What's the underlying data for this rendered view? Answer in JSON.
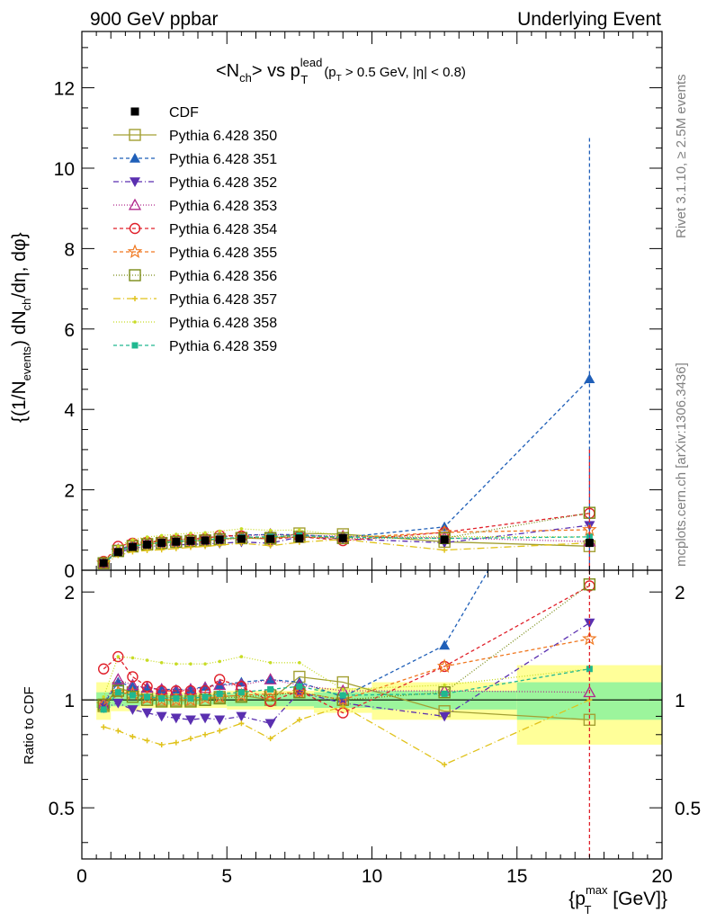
{
  "header": {
    "left": "900 GeV ppbar",
    "right": "Underlying Event"
  },
  "title": {
    "main": "<N",
    "main_sub": "ch",
    "main_mid": "> vs p",
    "main_sup": "lead",
    "main_sub2": "T",
    "cut_a": "(p",
    "cut_sub": "T",
    "cut_b": " > 0.5 GeV, |η| < 0.8)"
  },
  "side_text": {
    "rivet": "Rivet 3.1.10, ≥ 2.5M events",
    "mcplots": "mcplots.cern.ch [arXiv:1306.3436]"
  },
  "chart_data": {
    "type": "line",
    "ylabel_top": "{(1/N_events) dN_ch/dη, dφ}",
    "ylabel_top_parts": {
      "a": "{(1/N",
      "a_sub": "events",
      "b": ") dN",
      "b_sub": "ch",
      "c": "/dη, dφ}"
    },
    "ylabel_ratio": "Ratio to CDF",
    "xlabel": "{p_T^max [GeV]}",
    "xlabel_parts": {
      "a": "{p",
      "sup": "max",
      "sub": "T",
      "b": " [GeV]}"
    },
    "xlim": [
      0,
      20
    ],
    "ylim_top": [
      0,
      13.4
    ],
    "ylim_ratio": [
      0.36,
      2.3
    ],
    "x_ticks": [
      "0",
      "5",
      "10",
      "15",
      "20"
    ],
    "y_ticks_top": [
      "0",
      "2",
      "4",
      "6",
      "8",
      "10",
      "12"
    ],
    "y_ticks_ratio": [
      "0.5",
      "1",
      "2"
    ],
    "legend_position": "top-left",
    "x": [
      0.75,
      1.25,
      1.75,
      2.25,
      2.75,
      3.25,
      3.75,
      4.25,
      4.75,
      5.5,
      6.5,
      7.5,
      9.0,
      12.5,
      17.5
    ],
    "data": {
      "name": "CDF",
      "values": [
        0.18,
        0.45,
        0.58,
        0.64,
        0.68,
        0.71,
        0.73,
        0.74,
        0.76,
        0.78,
        0.78,
        0.79,
        0.8,
        0.76,
        0.68
      ]
    },
    "series": [
      {
        "name": "Pythia 6.428 350",
        "color": "#a3a033",
        "marker": "open-square",
        "dash": "solid",
        "ratio": [
          0.96,
          1.08,
          1.05,
          1.02,
          1.0,
          1.0,
          1.0,
          1.0,
          1.02,
          1.03,
          1.0,
          1.16,
          1.12,
          0.93,
          0.88
        ]
      },
      {
        "name": "Pythia 6.428 351",
        "color": "#1f5fb8",
        "marker": "filled-triangle-up",
        "dash": "4,3",
        "ratio": [
          0.97,
          1.12,
          1.09,
          1.08,
          1.07,
          1.07,
          1.07,
          1.09,
          1.1,
          1.12,
          1.14,
          1.12,
          1.02,
          1.42,
          7.0
        ]
      },
      {
        "name": "Pythia 6.428 352",
        "color": "#5a2fb0",
        "marker": "filled-triangle-down",
        "dash": "6,3,1,3",
        "ratio": [
          0.95,
          0.98,
          0.94,
          0.92,
          0.9,
          0.89,
          0.88,
          0.89,
          0.88,
          0.9,
          0.86,
          1.05,
          0.98,
          0.9,
          1.64
        ]
      },
      {
        "name": "Pythia 6.428 353",
        "color": "#b02a8c",
        "marker": "open-triangle-up",
        "dash": "1,2",
        "ratio": [
          0.98,
          1.14,
          1.1,
          1.08,
          1.07,
          1.06,
          1.07,
          1.08,
          1.1,
          1.1,
          1.14,
          1.1,
          1.06,
          1.06,
          1.05
        ]
      },
      {
        "name": "Pythia 6.428 354",
        "color": "#e0202a",
        "marker": "open-circle",
        "dash": "4,3",
        "ratio": [
          1.22,
          1.32,
          1.16,
          1.09,
          1.06,
          1.06,
          1.06,
          1.06,
          1.14,
          1.09,
          0.99,
          1.06,
          0.92,
          1.24,
          2.08
        ]
      },
      {
        "name": "Pythia 6.428 355",
        "color": "#f07820",
        "marker": "open-star",
        "dash": "4,3",
        "ratio": [
          0.97,
          1.05,
          1.04,
          1.01,
          1.0,
          1.0,
          1.0,
          1.01,
          1.02,
          1.03,
          1.04,
          1.05,
          1.0,
          1.24,
          1.48
        ]
      },
      {
        "name": "Pythia 6.428 356",
        "color": "#7a8c18",
        "marker": "open-square",
        "dash": "1,2",
        "ratio": [
          0.97,
          1.06,
          1.02,
          1.0,
          0.99,
          0.99,
          0.99,
          1.0,
          1.01,
          1.02,
          1.03,
          1.05,
          1.0,
          1.05,
          2.1
        ]
      },
      {
        "name": "Pythia 6.428 357",
        "color": "#e0c21a",
        "marker": "small-cross",
        "dash": "8,3,1,3",
        "ratio": [
          0.84,
          0.82,
          0.79,
          0.77,
          0.75,
          0.76,
          0.78,
          0.8,
          0.82,
          0.86,
          0.78,
          0.88,
          0.96,
          0.66,
          1.0
        ]
      },
      {
        "name": "Pythia 6.428 358",
        "color": "#c8dc24",
        "marker": "small-dot",
        "dash": "1,2",
        "ratio": [
          1.02,
          1.32,
          1.31,
          1.29,
          1.27,
          1.26,
          1.26,
          1.26,
          1.28,
          1.32,
          1.27,
          1.27,
          1.07,
          1.1,
          1.22
        ]
      },
      {
        "name": "Pythia 6.428 359",
        "color": "#20b890",
        "marker": "filled-square",
        "dash": "4,3",
        "ratio": [
          0.94,
          1.05,
          1.03,
          1.02,
          1.01,
          1.01,
          1.01,
          1.02,
          1.04,
          1.05,
          1.07,
          1.09,
          1.03,
          1.04,
          1.22
        ]
      }
    ],
    "ratio_bands": [
      {
        "x0": 0.5,
        "x1": 1.0,
        "inner": 0.05,
        "outer": 0.12
      },
      {
        "x0": 1.0,
        "x1": 2.0,
        "inner": 0.04,
        "outer": 0.07
      },
      {
        "x0": 2.0,
        "x1": 5.0,
        "inner": 0.03,
        "outer": 0.05
      },
      {
        "x0": 5.0,
        "x1": 8.0,
        "inner": 0.04,
        "outer": 0.06
      },
      {
        "x0": 8.0,
        "x1": 10.0,
        "inner": 0.05,
        "outer": 0.08
      },
      {
        "x0": 10.0,
        "x1": 15.0,
        "inner": 0.06,
        "outer": 0.12
      },
      {
        "x0": 15.0,
        "x1": 20.0,
        "inner": 0.12,
        "outer": 0.25
      }
    ]
  }
}
